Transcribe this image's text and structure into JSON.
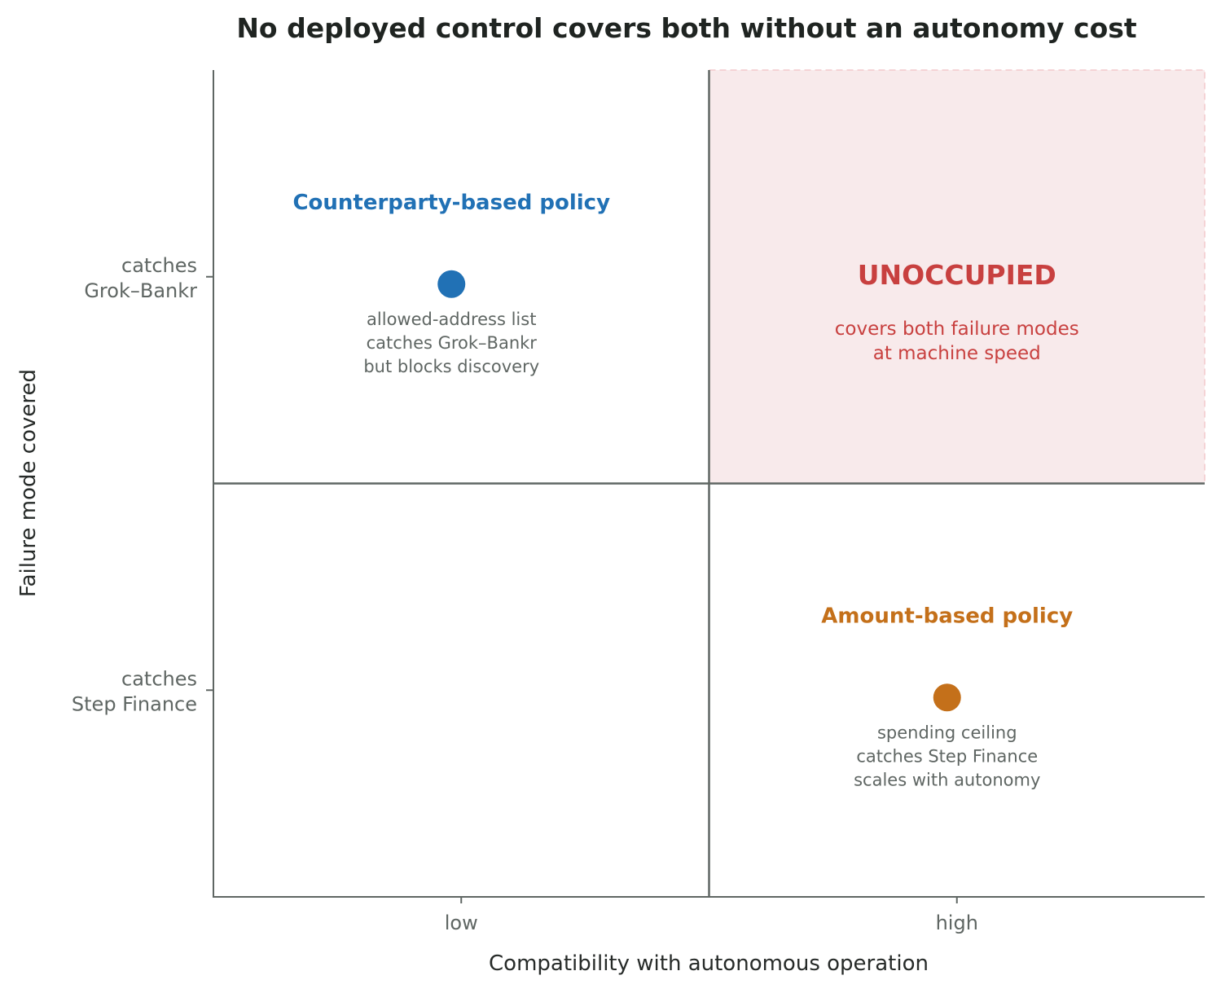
{
  "chart_data": {
    "type": "scatter",
    "title": "No deployed control covers both without an autonomy cost",
    "xlabel": "Compatibility with autonomous operation",
    "ylabel": "Failure mode covered",
    "x_categories": [
      "low",
      "high"
    ],
    "y_categories": [
      "catches Step Finance",
      "catches Grok–Bankr"
    ],
    "y_tick_lines": [
      [
        "catches",
        "Step Finance"
      ],
      [
        "catches",
        "Grok–Bankr"
      ]
    ],
    "xlim": [
      -0.5,
      1.5
    ],
    "ylim": [
      -0.5,
      1.5
    ],
    "quadrant_divider": {
      "x": 0.5,
      "y": 0.5
    },
    "grid": false,
    "points": [
      {
        "name": "Counterparty-based policy",
        "x": 0,
        "y": 1,
        "color": "#2171b5",
        "note": [
          "allowed-address list",
          "catches Grok–Bankr",
          "but blocks discovery"
        ]
      },
      {
        "name": "Amount-based policy",
        "x": 1,
        "y": 0,
        "color": "#c4701a",
        "note": [
          "spending ceiling",
          "catches Step Finance",
          "scales with autonomy"
        ]
      }
    ],
    "empty_region": {
      "label": "UNOCCUPIED",
      "note": [
        "covers both failure modes",
        "at machine speed"
      ],
      "x_range": [
        0.5,
        1.5
      ],
      "y_range": [
        0.5,
        1.5
      ],
      "color": "#c8403f",
      "fill": "#f8eaeb"
    }
  }
}
